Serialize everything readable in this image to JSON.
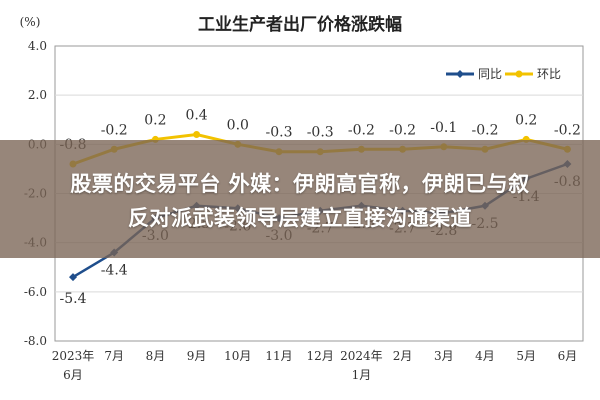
{
  "chart_data": {
    "type": "line",
    "title": "工业生产者出厂价格涨跌幅",
    "unit_label": "(%)",
    "categories": [
      [
        "2023年",
        "6月"
      ],
      [
        "7月"
      ],
      [
        "8月"
      ],
      [
        "9月"
      ],
      [
        "10月"
      ],
      [
        "11月"
      ],
      [
        "12月"
      ],
      [
        "2024年",
        "1月"
      ],
      [
        "2月"
      ],
      [
        "3月"
      ],
      [
        "4月"
      ],
      [
        "5月"
      ],
      [
        "6月"
      ]
    ],
    "ylim": [
      -8.0,
      4.0
    ],
    "yticks": [
      "4.0",
      "2.0",
      "0.0",
      "-2.0",
      "-4.0",
      "-6.0",
      "-8.0"
    ],
    "ytick_values": [
      4,
      2,
      0,
      -2,
      -4,
      -6,
      -8
    ],
    "grid": true,
    "legend_position": "top-right",
    "series": [
      {
        "name": "同比",
        "color": "#1f4e8c",
        "values": [
          -5.4,
          -4.4,
          -3.0,
          -2.5,
          -2.6,
          -3.0,
          -2.7,
          -2.5,
          -2.7,
          -2.8,
          -2.5,
          -1.4,
          -0.8
        ],
        "labels": [
          "-5.4",
          "-4.4",
          "-3.0",
          "-2.5",
          "-2.6",
          "-3.0",
          "-2.7",
          "-2.5",
          "-2.7",
          "-2.8",
          "-2.5",
          "-1.4",
          "-0.8"
        ]
      },
      {
        "name": "环比",
        "color": "#f2c200",
        "values": [
          -0.8,
          -0.2,
          0.2,
          0.4,
          0.0,
          -0.3,
          -0.3,
          -0.2,
          -0.2,
          -0.1,
          -0.2,
          0.2,
          -0.2
        ],
        "labels": [
          "-0.8",
          "-0.2",
          "0.2",
          "0.4",
          "0.0",
          "-0.3",
          "-0.3",
          "-0.2",
          "-0.2",
          "-0.1",
          "-0.2",
          "0.2",
          "-0.2"
        ]
      }
    ]
  },
  "overlay": {
    "line1": "股票的交易平台 外媒：伊朗高官称，伊朗已与叙",
    "line2": "反对派武装领导层建立直接沟通渠道"
  }
}
